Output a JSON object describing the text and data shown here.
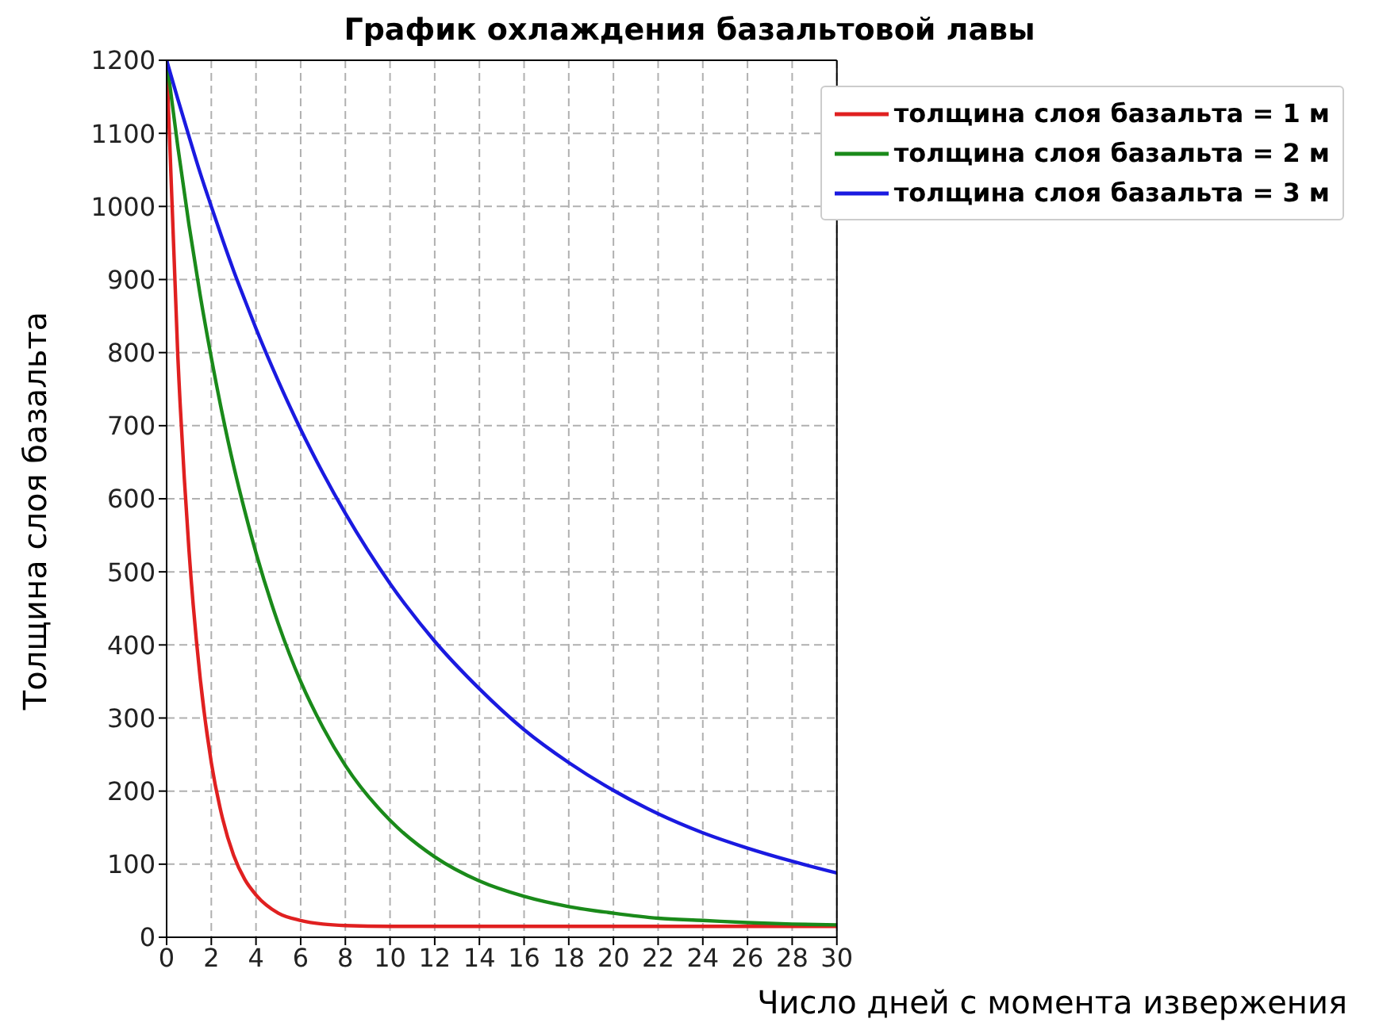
{
  "chart_data": {
    "type": "line",
    "title": "График охлаждения базальтовой лавы",
    "xlabel": "Число дней с момента извержения",
    "ylabel": "Толщина слоя базальта",
    "x": [
      0,
      0.5,
      1,
      1.5,
      2,
      2.5,
      3,
      3.5,
      4,
      5,
      6,
      7,
      8,
      10,
      12,
      14,
      16,
      18,
      20,
      22,
      24,
      26,
      28,
      30
    ],
    "series": [
      {
        "name": "толщина слоя базальта = 1 м",
        "color": "#e02020",
        "values": [
          1200,
          796,
          530,
          355,
          239,
          163,
          112,
          79,
          58,
          33,
          23,
          18,
          16,
          15,
          15,
          15,
          15,
          15,
          15,
          15,
          15,
          15,
          15,
          15
        ]
      },
      {
        "name": "толщина слоя базальта = 2 м",
        "color": "#1a8a1a",
        "values": [
          1200,
          1082,
          975,
          879,
          793,
          715,
          645,
          583,
          526,
          429,
          350,
          287,
          235,
          160,
          110,
          77,
          56,
          42,
          33,
          26,
          23,
          20,
          18,
          17
        ]
      },
      {
        "name": "толщина слоя базальта = 3 м",
        "color": "#1a1ae0",
        "values": [
          1200,
          1147,
          1096,
          1046,
          1000,
          955,
          912,
          872,
          833,
          761,
          695,
          635,
          580,
          484,
          405,
          340,
          284,
          239,
          201,
          169,
          143,
          122,
          104,
          88
        ]
      }
    ],
    "xlim": [
      0,
      30
    ],
    "xticks": [
      0,
      2,
      4,
      6,
      8,
      10,
      12,
      14,
      16,
      18,
      20,
      22,
      24,
      26,
      28,
      30
    ],
    "ylim": [
      0,
      1200
    ],
    "yticks": [
      0,
      100,
      200,
      300,
      400,
      500,
      600,
      700,
      800,
      900,
      1000,
      1100,
      1200
    ],
    "grid": true,
    "legend": "top right",
    "marker": "none",
    "line_style": "solid"
  }
}
